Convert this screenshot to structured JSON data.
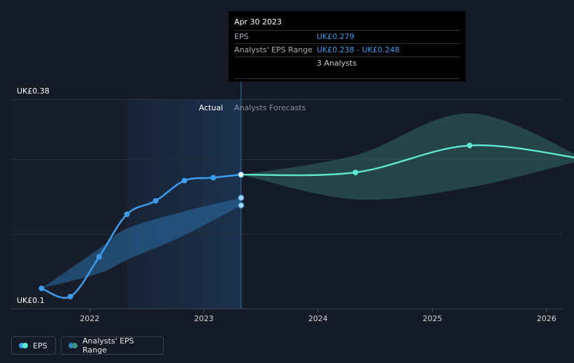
{
  "chart_data": {
    "type": "line",
    "y_axis": {
      "top_label": "UK£0.38",
      "bottom_label": "UK£0.1",
      "ylim": [
        0.1,
        0.38
      ]
    },
    "x_axis": {
      "ticks": [
        "2022",
        "2023",
        "2024",
        "2025",
        "2026"
      ],
      "xlim": [
        "2021-07-01",
        "2026-04-30"
      ]
    },
    "regions": {
      "actual_label": "Actual",
      "forecast_label": "Analysts Forecasts",
      "divider_date": "2023-04-30",
      "highlight_start": "2022-04-30"
    },
    "series": [
      {
        "name": "EPS",
        "color": "#3d9be9",
        "points": [
          [
            "2021-07-31",
            0.127
          ],
          [
            "2021-10-31",
            0.116
          ],
          [
            "2022-01-31",
            0.169
          ],
          [
            "2022-04-30",
            0.226
          ],
          [
            "2022-07-31",
            0.244
          ],
          [
            "2022-10-31",
            0.271
          ],
          [
            "2023-01-31",
            0.275
          ],
          [
            "2023-04-30",
            0.279
          ]
        ]
      },
      {
        "name": "Analysts' EPS Range",
        "color": "#2f7fc1",
        "band": [
          [
            "2021-07-31",
            0.127,
            0.127
          ],
          [
            "2022-01-31",
            0.147,
            0.18
          ],
          [
            "2022-04-30",
            0.165,
            0.207
          ],
          [
            "2022-10-31",
            0.198,
            0.23
          ],
          [
            "2023-04-30",
            0.238,
            0.248
          ]
        ],
        "markers": [
          [
            "2023-04-30",
            0.238
          ],
          [
            "2023-04-30",
            0.248
          ]
        ]
      },
      {
        "name": "EPS Forecast",
        "color": "#5ee8d3",
        "points": [
          [
            "2023-04-30",
            0.279
          ],
          [
            "2024-04-30",
            0.282
          ],
          [
            "2025-04-30",
            0.318
          ],
          [
            "2026-04-30",
            0.3
          ]
        ],
        "band": [
          [
            "2023-04-30",
            0.279,
            0.279
          ],
          [
            "2024-04-30",
            0.246,
            0.305
          ],
          [
            "2025-04-30",
            0.262,
            0.361
          ],
          [
            "2026-04-30",
            0.299,
            0.301
          ]
        ]
      }
    ]
  },
  "tooltip": {
    "date": "Apr 30 2023",
    "rows": [
      {
        "key": "EPS",
        "value": "UK£0.279"
      },
      {
        "key": "Analysts' EPS Range",
        "value": "UK£0.238 - UK£0.248"
      },
      {
        "key": "",
        "value": "3 Analysts"
      }
    ]
  },
  "legend": [
    {
      "label": "EPS",
      "colors": [
        "#3d9be9",
        "#5ee8d3"
      ]
    },
    {
      "label": "Analysts' EPS Range",
      "colors": [
        "#2f7fc1",
        "#3f8d86"
      ]
    }
  ]
}
